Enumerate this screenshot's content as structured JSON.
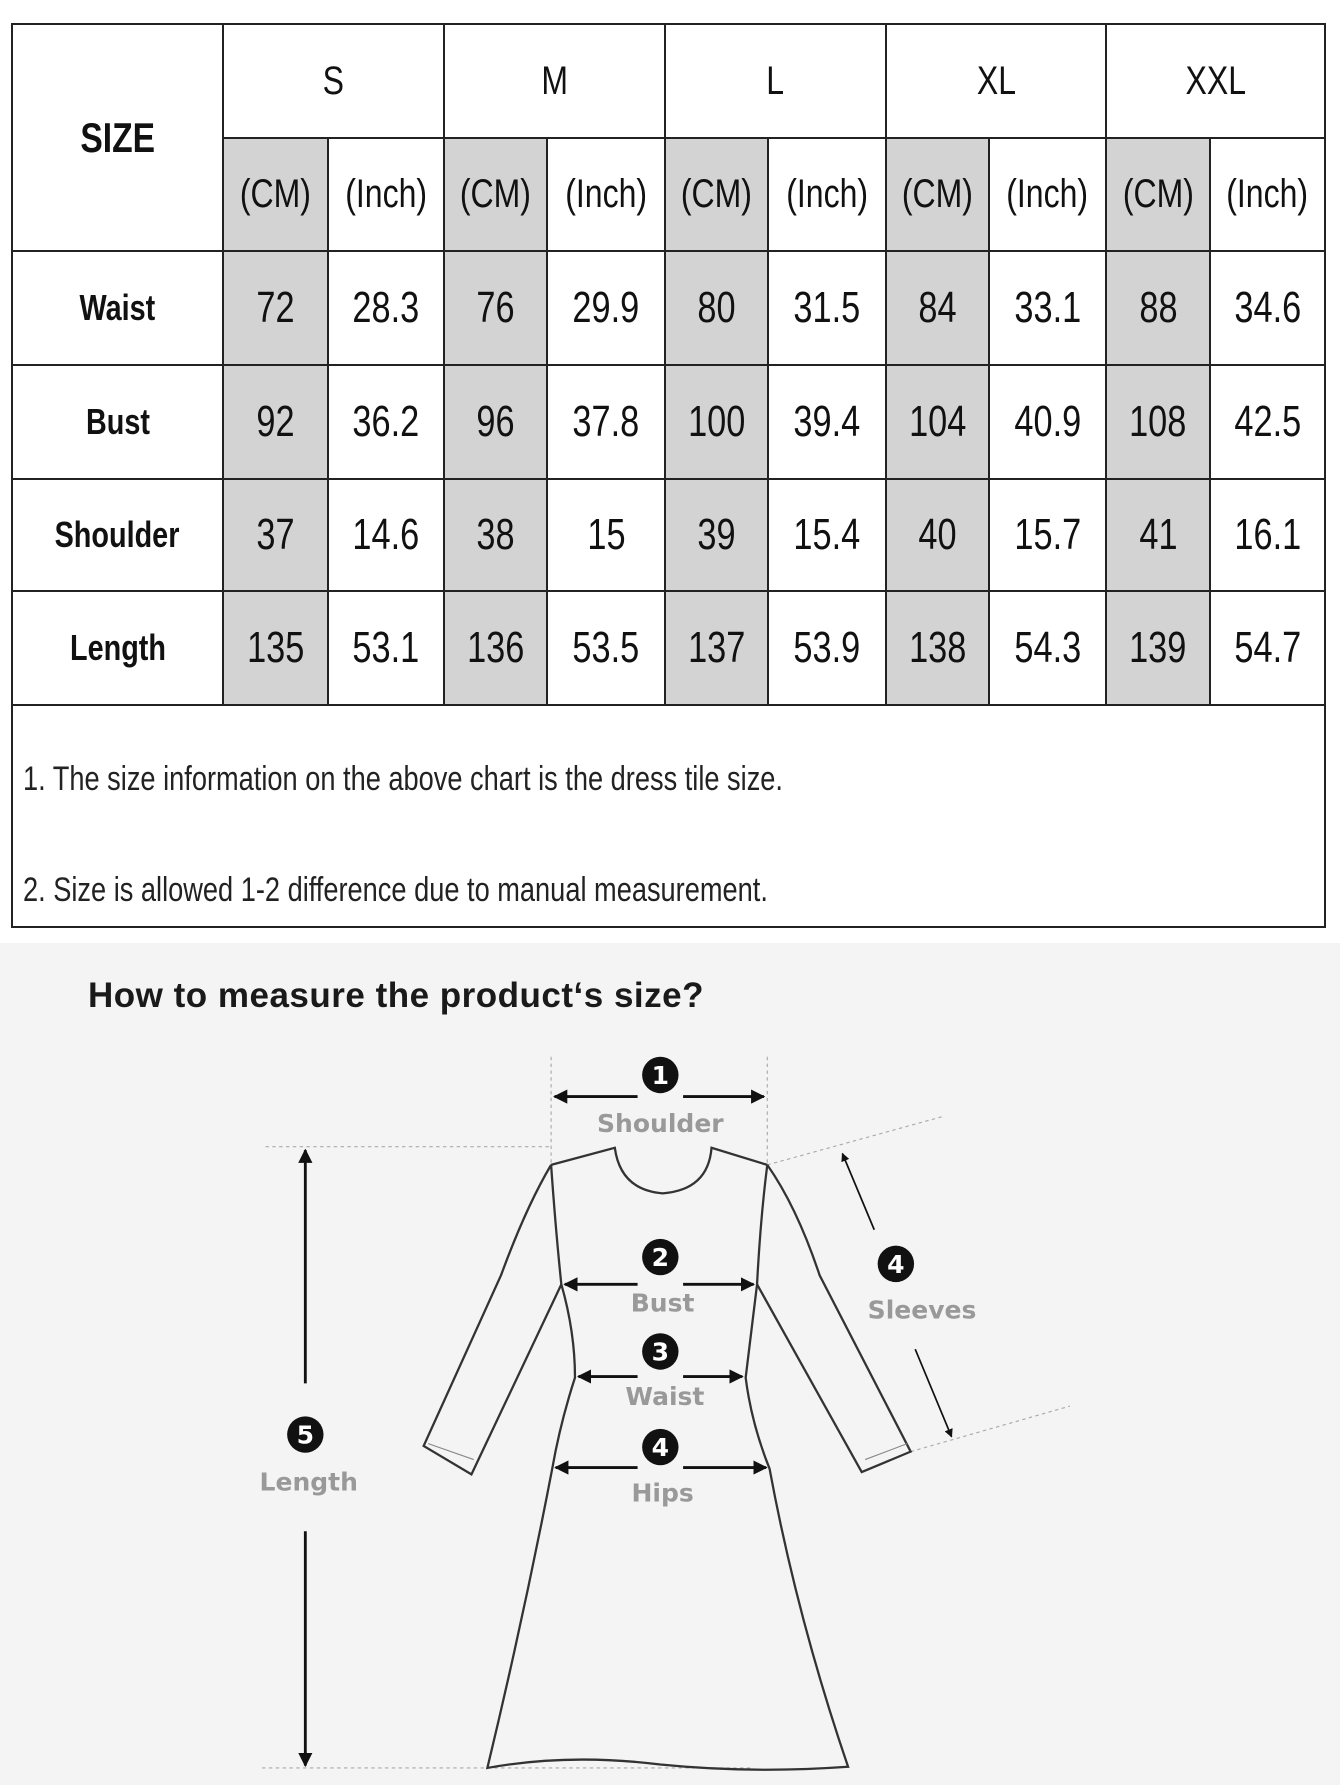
{
  "size_chart": {
    "corner_label": "SIZE",
    "sizes": [
      "S",
      "M",
      "L",
      "XL",
      "XXL"
    ],
    "units": [
      "(CM)",
      "(Inch)"
    ],
    "rows": [
      {
        "label": "Waist",
        "values": [
          "72",
          "28.3",
          "76",
          "29.9",
          "80",
          "31.5",
          "84",
          "33.1",
          "88",
          "34.6"
        ]
      },
      {
        "label": "Bust",
        "values": [
          "92",
          "36.2",
          "96",
          "37.8",
          "100",
          "39.4",
          "104",
          "40.9",
          "108",
          "42.5"
        ]
      },
      {
        "label": "Shoulder",
        "values": [
          "37",
          "14.6",
          "38",
          "15",
          "39",
          "15.4",
          "40",
          "15.7",
          "41",
          "16.1"
        ]
      },
      {
        "label": "Length",
        "values": [
          "135",
          "53.1",
          "136",
          "53.5",
          "137",
          "53.9",
          "138",
          "54.3",
          "139",
          "54.7"
        ]
      }
    ],
    "notes": [
      "1. The size information on the above chart is the dress tile size.",
      "2. Size is allowed 1-2 difference due to manual measurement."
    ],
    "cm_column_color": "#d3d3d3"
  },
  "measure_guide": {
    "title": "How to measure the product‘s size?",
    "labels": {
      "shoulder": {
        "num": "1",
        "text": "Shoulder"
      },
      "bust": {
        "num": "2",
        "text": "Bust"
      },
      "waist": {
        "num": "3",
        "text": "Waist"
      },
      "hips": {
        "num": "4",
        "text": "Hips"
      },
      "sleeves": {
        "num": "4",
        "text": "Sleeves"
      },
      "length": {
        "num": "5",
        "text": "Length"
      }
    }
  }
}
